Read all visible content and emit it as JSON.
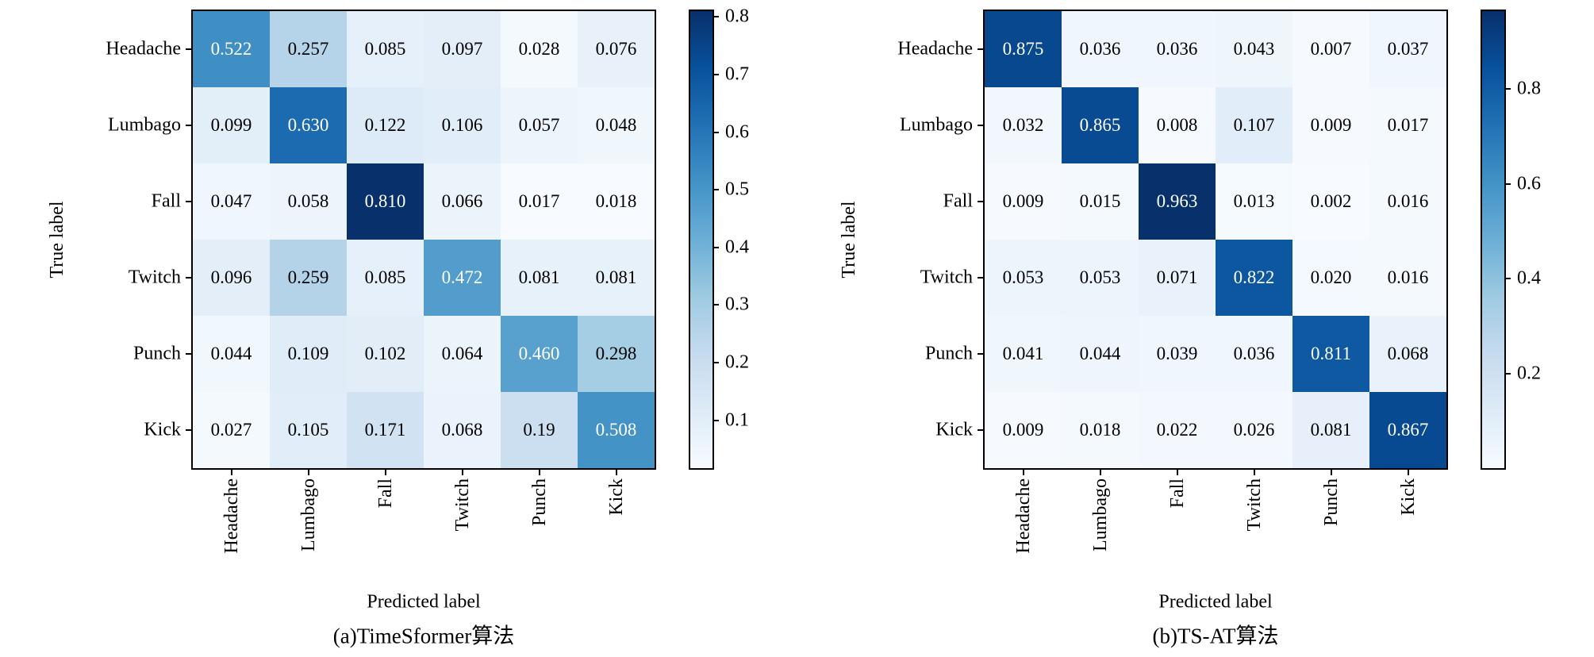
{
  "figure": {
    "background": "#ffffff",
    "text_color": "#000000",
    "colormap_name": "Blues",
    "colormap_stops": [
      [
        0.0,
        "#f7fbff"
      ],
      [
        0.125,
        "#deebf7"
      ],
      [
        0.25,
        "#c6dbef"
      ],
      [
        0.375,
        "#9ecae1"
      ],
      [
        0.5,
        "#6baed6"
      ],
      [
        0.625,
        "#4292c6"
      ],
      [
        0.75,
        "#2171b5"
      ],
      [
        0.875,
        "#08519c"
      ],
      [
        1.0,
        "#08306b"
      ]
    ]
  },
  "chart_data": [
    {
      "type": "heatmap",
      "subtype": "confusion-matrix",
      "title": "(a)TimeSformer算法",
      "xlabel": "Predicted label",
      "ylabel": "True label",
      "x_categories": [
        "Headache",
        "Lumbago",
        "Fall",
        "Twitch",
        "Punch",
        "Kick"
      ],
      "y_categories": [
        "Headache",
        "Lumbago",
        "Fall",
        "Twitch",
        "Punch",
        "Kick"
      ],
      "values": [
        [
          "0.522",
          "0.257",
          "0.085",
          "0.097",
          "0.028",
          "0.076"
        ],
        [
          "0.099",
          "0.630",
          "0.122",
          "0.106",
          "0.057",
          "0.048"
        ],
        [
          "0.047",
          "0.058",
          "0.810",
          "0.066",
          "0.017",
          "0.018"
        ],
        [
          "0.096",
          "0.259",
          "0.085",
          "0.472",
          "0.081",
          "0.081"
        ],
        [
          "0.044",
          "0.109",
          "0.102",
          "0.064",
          "0.460",
          "0.298"
        ],
        [
          "0.027",
          "0.105",
          "0.171",
          "0.068",
          "0.19",
          "0.508"
        ]
      ],
      "vmin": 0.017,
      "vmax": 0.81,
      "colorbar_ticks": [
        "0.1",
        "0.2",
        "0.3",
        "0.4",
        "0.5",
        "0.6",
        "0.7",
        "0.8"
      ],
      "colorbar_position": "right",
      "grid": false
    },
    {
      "type": "heatmap",
      "subtype": "confusion-matrix",
      "title": "(b)TS-AT算法",
      "xlabel": "Predicted label",
      "ylabel": "True label",
      "x_categories": [
        "Headache",
        "Lumbago",
        "Fall",
        "Twitch",
        "Punch",
        "Kick"
      ],
      "y_categories": [
        "Headache",
        "Lumbago",
        "Fall",
        "Twitch",
        "Punch",
        "Kick"
      ],
      "values": [
        [
          "0.875",
          "0.036",
          "0.036",
          "0.043",
          "0.007",
          "0.037"
        ],
        [
          "0.032",
          "0.865",
          "0.008",
          "0.107",
          "0.009",
          "0.017"
        ],
        [
          "0.009",
          "0.015",
          "0.963",
          "0.013",
          "0.002",
          "0.016"
        ],
        [
          "0.053",
          "0.053",
          "0.071",
          "0.822",
          "0.020",
          "0.016"
        ],
        [
          "0.041",
          "0.044",
          "0.039",
          "0.036",
          "0.811",
          "0.068"
        ],
        [
          "0.009",
          "0.018",
          "0.022",
          "0.026",
          "0.081",
          "0.867"
        ]
      ],
      "vmin": 0.002,
      "vmax": 0.963,
      "colorbar_ticks": [
        "0.2",
        "0.4",
        "0.6",
        "0.8"
      ],
      "colorbar_position": "right",
      "grid": false
    }
  ]
}
